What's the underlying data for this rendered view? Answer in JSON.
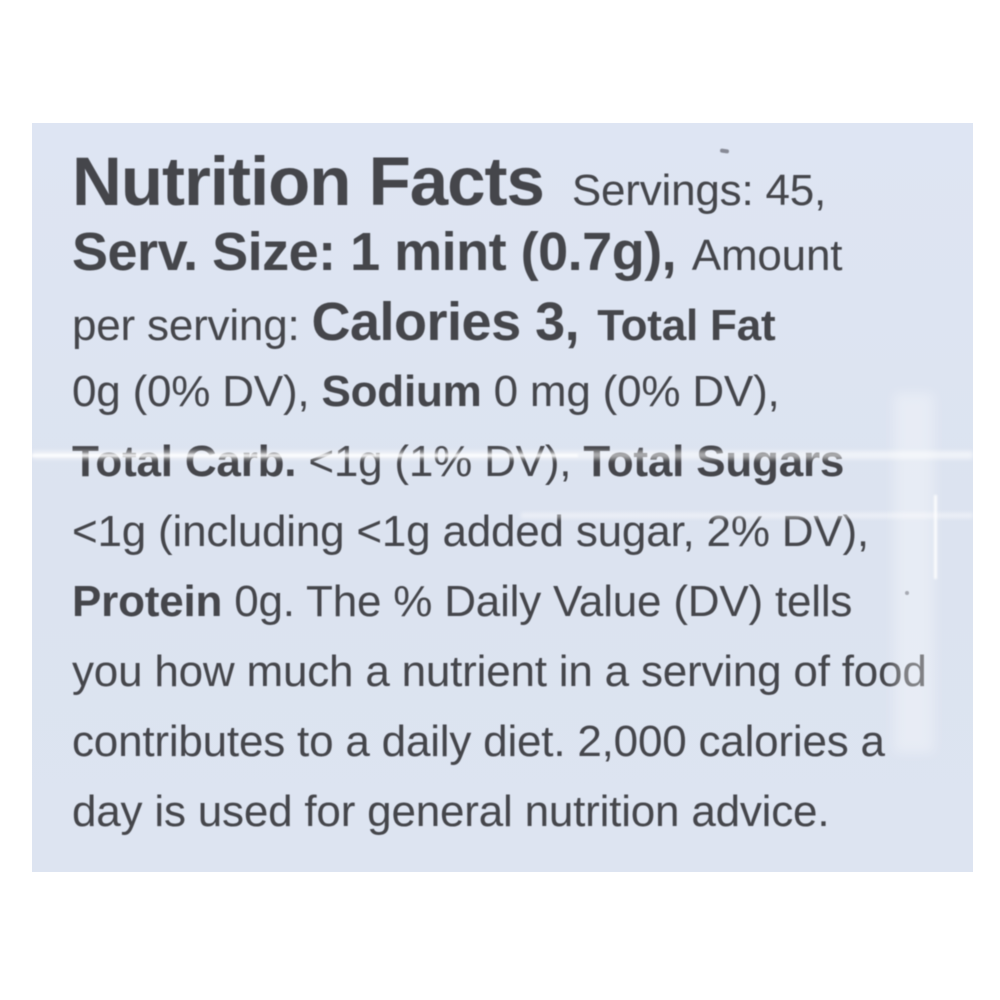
{
  "document": {
    "kind": "nutrition-facts-label",
    "page_background_color": "#ffffff",
    "label_background_color": "#dde4f1",
    "text_color": "#45464b"
  },
  "text": {
    "title": "Nutrition Facts",
    "servings": "Servings: 45,",
    "serv_size": "Serv. Size: 1 mint (0.7g),",
    "amount_word": "Amount",
    "per_serving": "per serving:",
    "calories": "Calories 3,",
    "total_fat_label": "Total Fat",
    "total_fat_value": "0g (0% DV),",
    "sodium_label": "Sodium",
    "sodium_value": "0 mg (0% DV),",
    "total_carb_label": "Total Carb.",
    "total_carb_value": "<1g (1% DV),",
    "total_sugars_label": "Total Sugars",
    "total_sugars_value": "<1g (including <1g added sugar, 2% DV),",
    "protein_label": "Protein",
    "protein_value": "0g.",
    "footnote_line1": "The % Daily Value (DV) tells",
    "footnote_line2": "you how much a nutrient in a serving of food",
    "footnote_line3": "contributes to a daily diet. 2,000 calories a",
    "footnote_line4": "day is used for general nutrition advice."
  },
  "nutrition_values": {
    "servings_per_container": "45",
    "serving_size": "1 mint (0.7g)",
    "calories": "3",
    "total_fat": "0g (0% DV)",
    "sodium": "0 mg (0% DV)",
    "total_carbohydrate": "<1g (1% DV)",
    "total_sugars": "<1g (including <1g added sugar, 2% DV)",
    "protein": "0g"
  }
}
